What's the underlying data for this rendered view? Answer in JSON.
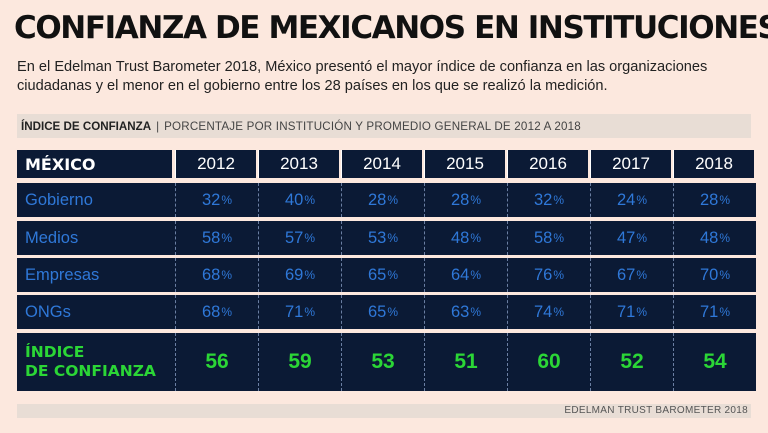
{
  "header": {
    "title": "CONFIANZA DE MEXICANOS EN INSTITUCIONES",
    "subtitle": "En el Edelman Trust Barometer 2018, México presentó el mayor índice de confianza en las organizaciones ciudadanas y el menor en el gobierno entre los 28 países en los que se realizó la medición."
  },
  "band": {
    "label": "ÍNDICE DE CONFIANZA",
    "separator": "|",
    "description": "PORCENTAJE POR INSTITUCIÓN Y PROMEDIO GENERAL DE 2012 A 2018"
  },
  "source": "EDELMAN TRUST BAROMETER 2018",
  "colors": {
    "background": "#fce8de",
    "cell": "#0b1a35",
    "value_blue": "#2f78d8",
    "index_green": "#2bd636"
  },
  "chart_data": {
    "type": "table",
    "title": "CONFIANZA DE MEXICANOS EN INSTITUCIONES",
    "corner_label": "MÉXICO",
    "unit": "%",
    "years": [
      "2012",
      "2013",
      "2014",
      "2015",
      "2016",
      "2017",
      "2018"
    ],
    "series": [
      {
        "name": "Gobierno",
        "values": [
          32,
          40,
          28,
          28,
          32,
          24,
          28
        ]
      },
      {
        "name": "Medios",
        "values": [
          58,
          57,
          53,
          48,
          58,
          47,
          48
        ]
      },
      {
        "name": "Empresas",
        "values": [
          68,
          69,
          65,
          64,
          76,
          67,
          70
        ]
      },
      {
        "name": "ONGs",
        "values": [
          68,
          71,
          65,
          63,
          74,
          71,
          71
        ]
      }
    ],
    "index": {
      "label_line1": "ÍNDICE",
      "label_line2": "DE CONFIANZA",
      "values": [
        56,
        59,
        53,
        51,
        60,
        52,
        54
      ]
    }
  }
}
